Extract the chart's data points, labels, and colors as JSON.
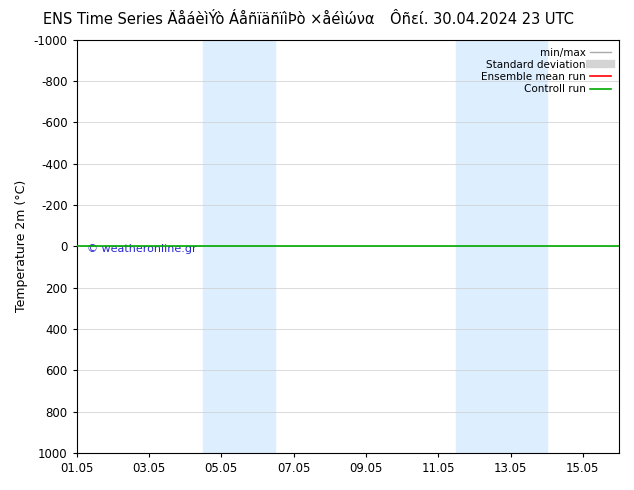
{
  "title_left": "ENS Time Series ÄåáèìÝò ÁåñïäñïìÞò ×åéìώνα",
  "title_right": "Ôñεί. 30.04.2024 23 UTC",
  "ylabel": "Temperature 2m (°C)",
  "watermark": "© weatheronline.gr",
  "xticklabels": [
    "01.05",
    "03.05",
    "05.05",
    "07.05",
    "09.05",
    "11.05",
    "13.05",
    "15.05"
  ],
  "xtick_positions": [
    0,
    2,
    4,
    6,
    8,
    10,
    12,
    14
  ],
  "ytick_positions": [
    -1000,
    -800,
    -600,
    -400,
    -200,
    0,
    200,
    400,
    600,
    800,
    1000
  ],
  "ytick_labels": [
    "-1000",
    "-800",
    "-600",
    "-400",
    "-200",
    "0",
    "200",
    "400",
    "600",
    "800",
    "1000"
  ],
  "ymin": -1000,
  "ymax": 1000,
  "xmin": 0,
  "xmax": 15,
  "background_color": "#ffffff",
  "plot_bg": "#ffffff",
  "shaded_bands": [
    {
      "xstart": 3.5,
      "xend": 5.5
    },
    {
      "xstart": 10.5,
      "xend": 13.0
    }
  ],
  "shaded_color": "#ddeeff",
  "green_line_y": 0,
  "green_line_color": "#00aa00",
  "red_line_color": "#ff0000",
  "legend_labels": [
    "min/max",
    "Standard deviation",
    "Ensemble mean run",
    "Controll run"
  ],
  "title_fontsize": 10.5,
  "axis_fontsize": 9,
  "tick_fontsize": 8.5,
  "watermark_color": "#0000cc"
}
